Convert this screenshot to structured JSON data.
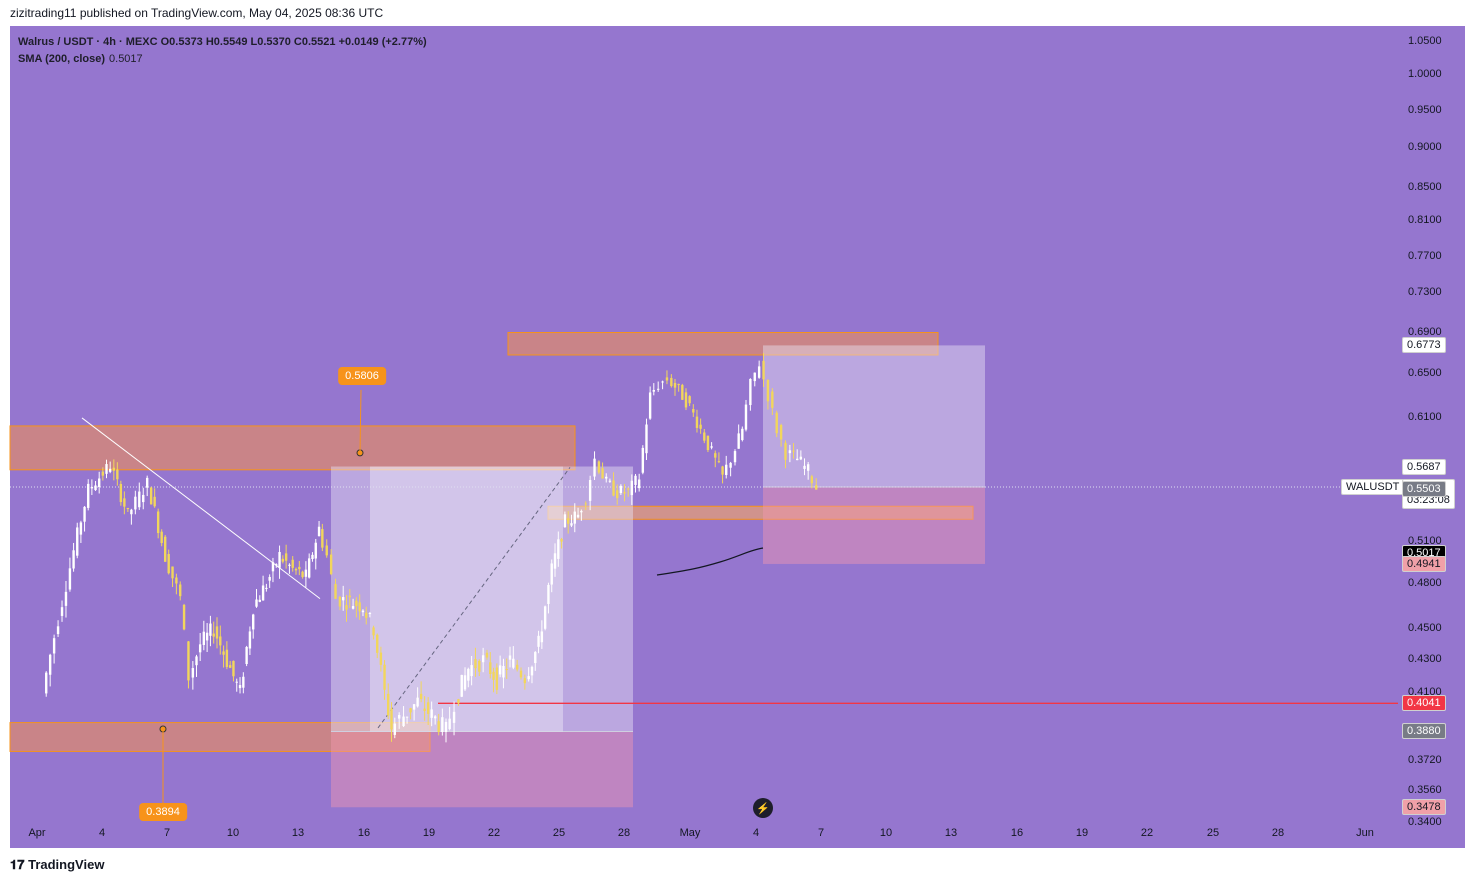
{
  "header": {
    "publisher_line": "zizitrading11 published on TradingView.com, May 04, 2025 08:36 UTC"
  },
  "legend": {
    "symbol_line": "Walrus / USDT · 4h · MEXC  O0.5373  H0.5549  L0.5370  C0.5521  +0.0149 (+2.77%)",
    "sma_label": "SMA (200, close)",
    "sma_value": "0.5017"
  },
  "brand": {
    "logo_text": "TradingView"
  },
  "chart_data": {
    "type": "candlestick",
    "symbol": "Walrus / USDT",
    "interval": "4h",
    "exchange": "MEXC",
    "ohlc_last": {
      "open": 0.5373,
      "high": 0.5549,
      "low": 0.537,
      "close": 0.5521,
      "change": 0.0149,
      "change_pct": 2.77
    },
    "y_scale": "log",
    "ylim": [
      0.34,
      1.06
    ],
    "y_ticks": [
      "1.0500",
      "1.0000",
      "0.9500",
      "0.9000",
      "0.8500",
      "0.8100",
      "0.7700",
      "0.7300",
      "0.6900",
      "0.6500",
      "0.6100",
      "0.5100",
      "0.4800",
      "0.4500",
      "0.4300",
      "0.4100",
      "0.3720",
      "0.3560",
      "0.3400"
    ],
    "x_ticks": [
      "Apr",
      "4",
      "7",
      "10",
      "13",
      "16",
      "19",
      "22",
      "25",
      "28",
      "May",
      "4",
      "7",
      "10",
      "13",
      "16",
      "19",
      "22",
      "25",
      "28",
      "Jun"
    ],
    "price_path": [
      [
        0.42,
        0.41
      ],
      [
        1.5,
        0.48
      ],
      [
        2.5,
        0.55
      ],
      [
        3.5,
        0.57
      ],
      [
        4.3,
        0.53
      ],
      [
        5.2,
        0.555
      ],
      [
        6,
        0.5
      ],
      [
        6.7,
        0.47
      ],
      [
        7.1,
        0.42
      ],
      [
        7.6,
        0.44
      ],
      [
        8.2,
        0.45
      ],
      [
        8.8,
        0.43
      ],
      [
        9.4,
        0.41
      ],
      [
        10,
        0.465
      ],
      [
        10.6,
        0.48
      ],
      [
        11.2,
        0.5
      ],
      [
        11.8,
        0.49
      ],
      [
        12.4,
        0.485
      ],
      [
        13,
        0.52
      ],
      [
        13.4,
        0.5
      ],
      [
        13.8,
        0.47
      ],
      [
        14.4,
        0.468
      ],
      [
        15,
        0.465
      ],
      [
        15.5,
        0.45
      ],
      [
        16,
        0.41
      ],
      [
        16.3,
        0.39
      ],
      [
        16.7,
        0.395
      ],
      [
        17.5,
        0.405
      ],
      [
        18.3,
        0.395
      ],
      [
        18.8,
        0.388
      ],
      [
        19.2,
        0.405
      ],
      [
        19.8,
        0.425
      ],
      [
        20.5,
        0.43
      ],
      [
        21.1,
        0.418
      ],
      [
        21.7,
        0.43
      ],
      [
        22.4,
        0.42
      ],
      [
        23,
        0.44
      ],
      [
        23.6,
        0.49
      ],
      [
        24.2,
        0.525
      ],
      [
        24.8,
        0.53
      ],
      [
        25.2,
        0.545
      ],
      [
        25.6,
        0.575
      ],
      [
        26.1,
        0.555
      ],
      [
        26.6,
        0.548
      ],
      [
        27.1,
        0.548
      ],
      [
        27.6,
        0.56
      ],
      [
        28.1,
        0.63
      ],
      [
        28.5,
        0.64
      ],
      [
        28.9,
        0.645
      ],
      [
        29.4,
        0.635
      ],
      [
        29.9,
        0.62
      ],
      [
        30.4,
        0.6
      ],
      [
        30.9,
        0.58
      ],
      [
        31.4,
        0.56
      ],
      [
        31.8,
        0.575
      ],
      [
        32.3,
        0.6
      ],
      [
        32.7,
        0.64
      ],
      [
        33.1,
        0.66
      ],
      [
        33.5,
        0.63
      ],
      [
        33.9,
        0.6
      ],
      [
        34.3,
        0.58
      ],
      [
        34.8,
        0.575
      ],
      [
        35.3,
        0.565
      ],
      [
        35.7,
        0.552
      ]
    ],
    "indicators": [
      {
        "name": "SMA (200, close)",
        "value": 0.5017
      }
    ],
    "price_tags": [
      {
        "label": "0.6773",
        "price": 0.6773,
        "bg": "#ffffff",
        "fg": "#131722"
      },
      {
        "label": "0.5687",
        "price": 0.5687,
        "bg": "#ffffff",
        "fg": "#131722"
      },
      {
        "label": "0.5521",
        "price": 0.5521,
        "bg": "#ffffff",
        "fg": "#131722",
        "symbol": "WALUSDT",
        "countdown": "03:23:08"
      },
      {
        "label": "0.5503",
        "price": 0.5503,
        "bg": "#787b86",
        "fg": "#ffffff"
      },
      {
        "label": "0.5017",
        "price": 0.5017,
        "bg": "#000000",
        "fg": "#ffffff"
      },
      {
        "label": "0.4941",
        "price": 0.4941,
        "bg": "#f0a0a8",
        "fg": "#131722"
      },
      {
        "label": "0.4041",
        "price": 0.4041,
        "bg": "#f23645",
        "fg": "#ffffff"
      },
      {
        "label": "0.3880",
        "price": 0.388,
        "bg": "#787b86",
        "fg": "#ffffff"
      },
      {
        "label": "0.3478",
        "price": 0.3478,
        "bg": "#f0a0a8",
        "fg": "#131722"
      }
    ],
    "annotations": [
      {
        "label": "0.5806",
        "price": 0.5806,
        "bg": "#f7931a"
      },
      {
        "label": "0.3894",
        "price": 0.3894,
        "bg": "#f7931a"
      }
    ],
    "zones": [
      {
        "kind": "resistance",
        "from": 0.668,
        "to": 0.69,
        "color": "#e08a6a"
      },
      {
        "kind": "resistance",
        "from": 0.566,
        "to": 0.603,
        "color": "#e08a6a"
      },
      {
        "kind": "support",
        "from": 0.377,
        "to": 0.393,
        "color": "#e08a6a"
      },
      {
        "kind": "support",
        "from": 0.527,
        "to": 0.537,
        "color": "#e9a070"
      }
    ],
    "positions": [
      {
        "kind": "long",
        "entry": 0.388,
        "target": 0.5687,
        "stop": 0.3478
      },
      {
        "kind": "long",
        "entry": 0.5521,
        "target": 0.6773,
        "stop": 0.4941
      }
    ],
    "colors": {
      "background": "#9576cf",
      "up": "#ffffff",
      "down": "#f2d65c",
      "sma": "#131722",
      "alert_line": "#f23645"
    }
  }
}
